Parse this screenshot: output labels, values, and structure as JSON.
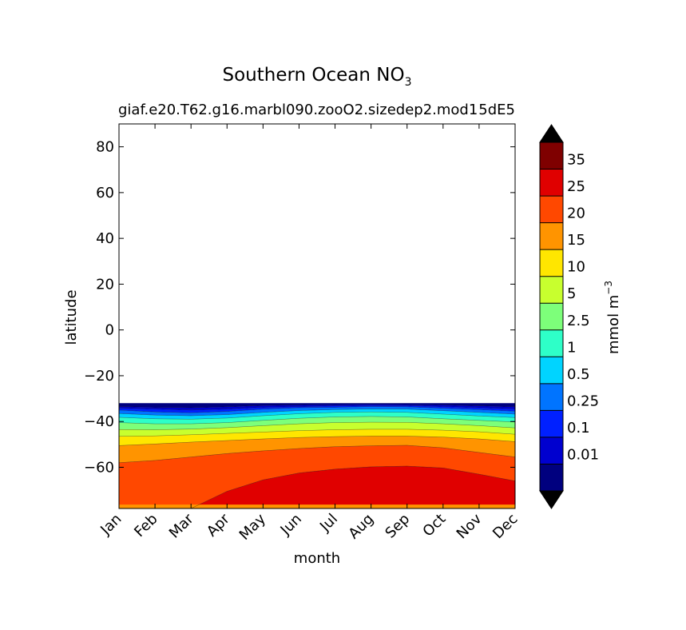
{
  "chart_data": {
    "type": "contourf",
    "title": "Southern Ocean NO",
    "title_subscript": "3",
    "subtitle": "giaf.e20.T62.g16.marbl090.zooO2.sizedep2.mod1",
    "subtitle_right": "5dE5",
    "xlabel": "month",
    "ylabel": "latitude",
    "x_categories": [
      "Jan",
      "Feb",
      "Mar",
      "Apr",
      "May",
      "Jun",
      "Jul",
      "Aug",
      "Sep",
      "Oct",
      "Nov",
      "Dec"
    ],
    "ylim": [
      -78,
      90
    ],
    "yticks": [
      "80",
      "60",
      "40",
      "20",
      "0",
      "−20",
      "−40",
      "−60"
    ],
    "ytick_values": [
      80,
      60,
      40,
      20,
      0,
      -20,
      -40,
      -60
    ],
    "data_lat_range": [
      -78,
      -32
    ],
    "month_index": [
      0,
      1,
      2,
      3,
      4,
      5,
      6,
      7,
      8,
      9,
      10,
      11
    ],
    "levels": [
      0,
      0.01,
      0.1,
      0.25,
      0.5,
      1,
      2.5,
      5,
      10,
      15,
      20,
      25,
      35,
      40
    ],
    "level_colors": [
      "#00007f",
      "#0000cf",
      "#0020ff",
      "#0074ff",
      "#00d4ff",
      "#2effc8",
      "#7dff7a",
      "#c8ff2e",
      "#ffe600",
      "#ff9400",
      "#ff4800",
      "#e00000",
      "#7f0000"
    ],
    "under_color": "#000000",
    "over_color": "#000000",
    "contour_boundaries": [
      {
        "level": 0.01,
        "lat": [
          -33.5,
          -33.8,
          -34.0,
          -33.6,
          -33.0,
          -32.8,
          -32.6,
          -32.5,
          -32.6,
          -32.8,
          -33.2,
          -33.6
        ]
      },
      {
        "level": 0.1,
        "lat": [
          -34.2,
          -34.6,
          -35.0,
          -34.6,
          -33.8,
          -33.5,
          -33.2,
          -33.0,
          -33.1,
          -33.5,
          -34.0,
          -34.5
        ]
      },
      {
        "level": 0.25,
        "lat": [
          -35.0,
          -35.8,
          -36.2,
          -35.6,
          -34.6,
          -34.0,
          -33.8,
          -33.5,
          -33.6,
          -34.2,
          -34.8,
          -35.5
        ]
      },
      {
        "level": 0.5,
        "lat": [
          -36.5,
          -37.2,
          -37.5,
          -37.0,
          -36.0,
          -35.2,
          -34.8,
          -34.5,
          -34.6,
          -35.3,
          -36.0,
          -36.8
        ]
      },
      {
        "level": 1,
        "lat": [
          -38.2,
          -38.8,
          -39.0,
          -38.5,
          -37.5,
          -36.6,
          -36.0,
          -35.8,
          -36.0,
          -36.8,
          -37.6,
          -38.3
        ]
      },
      {
        "level": 2.5,
        "lat": [
          -40.5,
          -41.0,
          -41.0,
          -40.5,
          -39.5,
          -38.6,
          -38.0,
          -37.8,
          -38.0,
          -38.8,
          -39.5,
          -40.2
        ]
      },
      {
        "level": 5,
        "lat": [
          -43.5,
          -43.6,
          -43.3,
          -42.7,
          -41.8,
          -41.0,
          -40.5,
          -40.3,
          -40.4,
          -41.0,
          -41.8,
          -42.8
        ]
      },
      {
        "level": 10,
        "lat": [
          -46.5,
          -46.3,
          -45.8,
          -45.2,
          -44.6,
          -44.0,
          -43.6,
          -43.4,
          -43.4,
          -43.8,
          -44.5,
          -45.6
        ]
      },
      {
        "level": 15,
        "lat": [
          -50.5,
          -49.8,
          -49.0,
          -48.3,
          -47.6,
          -47.0,
          -46.6,
          -46.4,
          -46.4,
          -46.8,
          -47.6,
          -48.8
        ]
      },
      {
        "level": 20,
        "lat": [
          -58.0,
          -57.0,
          -55.5,
          -54.0,
          -52.8,
          -51.8,
          -51.0,
          -50.6,
          -50.4,
          -51.5,
          -53.5,
          -55.5
        ]
      },
      {
        "level": 25,
        "lat": [
          -78,
          -78,
          -78,
          -70.5,
          -65.5,
          -62.5,
          -60.8,
          -59.8,
          -59.5,
          -60.3,
          -63.0,
          -66.0
        ]
      }
    ],
    "bottom_strip": {
      "lat": [
        -78,
        -76.3
      ],
      "color": "#ff9400"
    },
    "colorbar": {
      "tick_labels": [
        "35",
        "25",
        "20",
        "15",
        "10",
        "5",
        "2.5",
        "1",
        "0.5",
        "0.25",
        "0.1",
        "0.01"
      ],
      "label": "mmol m",
      "label_superscript": "−3"
    }
  }
}
